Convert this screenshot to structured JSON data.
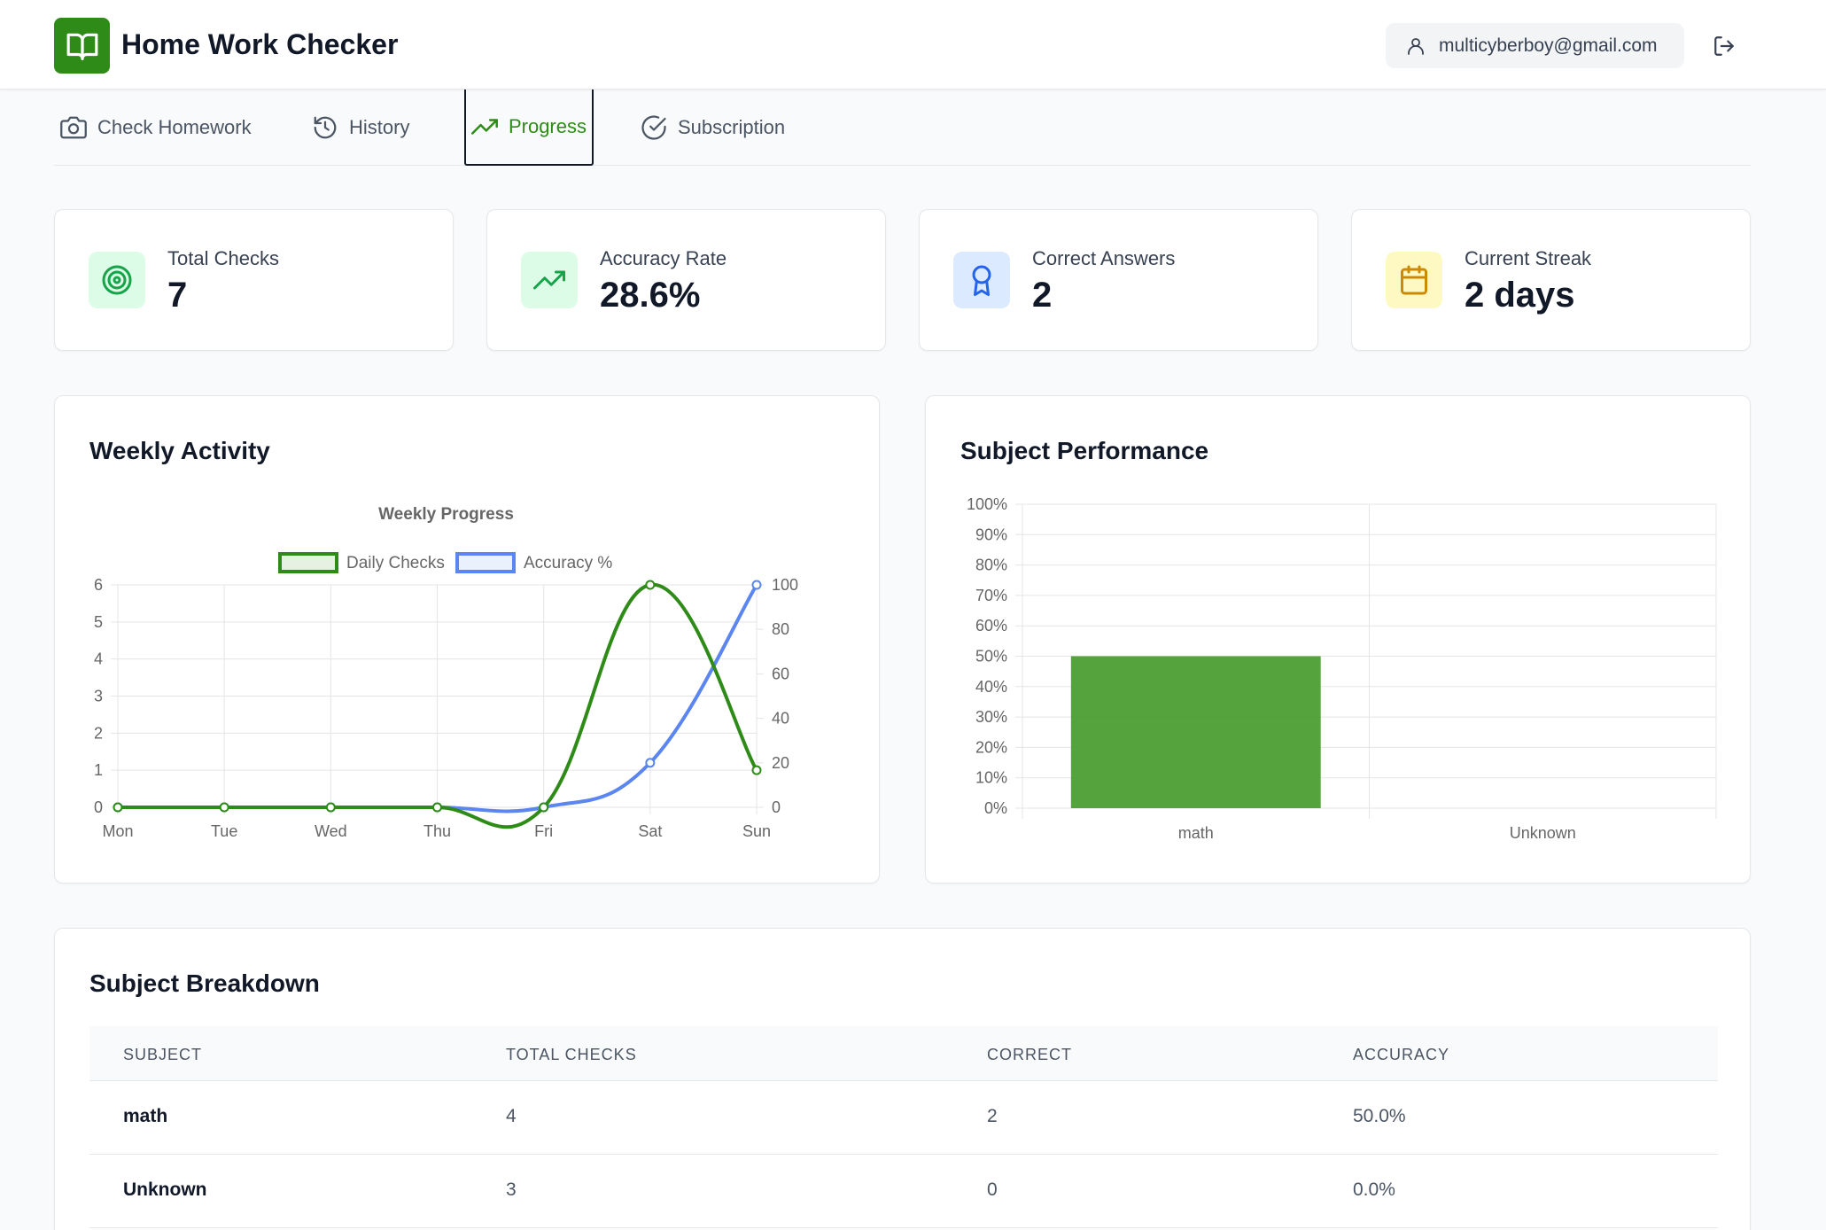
{
  "app": {
    "title": "Home Work Checker",
    "email": "multicyberboy@gmail.com"
  },
  "tabs": [
    {
      "label": "Check Homework",
      "icon": "camera-icon"
    },
    {
      "label": "History",
      "icon": "history-icon"
    },
    {
      "label": "Progress",
      "icon": "trending-up-icon",
      "active": true
    },
    {
      "label": "Subscription",
      "icon": "check-circle-icon"
    }
  ],
  "stats": [
    {
      "label": "Total Checks",
      "value": "7",
      "icon": "target-icon",
      "color": "#16a34a",
      "bg": "#dcfce7"
    },
    {
      "label": "Accuracy Rate",
      "value": "28.6%",
      "icon": "trending-up-icon",
      "color": "#16a34a",
      "bg": "#dcfce7"
    },
    {
      "label": "Correct Answers",
      "value": "2",
      "icon": "award-icon",
      "color": "#2563eb",
      "bg": "#dbeafe"
    },
    {
      "label": "Current Streak",
      "value": "2 days",
      "icon": "calendar-icon",
      "color": "#ca8a04",
      "bg": "#fef9c3"
    }
  ],
  "weekly": {
    "panel_title": "Weekly Activity"
  },
  "subject_perf": {
    "panel_title": "Subject Performance"
  },
  "chart_data": [
    {
      "type": "line",
      "title": "Weekly Progress",
      "categories": [
        "Mon",
        "Tue",
        "Wed",
        "Thu",
        "Fri",
        "Sat",
        "Sun"
      ],
      "series": [
        {
          "name": "Daily Checks",
          "values": [
            0,
            0,
            0,
            0,
            0,
            6,
            1
          ],
          "axis": "left",
          "color": "#2e8b17"
        },
        {
          "name": "Accuracy %",
          "values": [
            0,
            0,
            0,
            0,
            0,
            20,
            100
          ],
          "axis": "right",
          "color": "#5b85f0"
        }
      ],
      "ylim_left": [
        0,
        6
      ],
      "yticks_left": [
        "0",
        "1",
        "2",
        "3",
        "4",
        "5",
        "6"
      ],
      "ylim_right": [
        0,
        100
      ],
      "yticks_right": [
        "0",
        "20",
        "40",
        "60",
        "80",
        "100"
      ],
      "legend": "top",
      "grid": true
    },
    {
      "type": "bar",
      "categories": [
        "math",
        "Unknown"
      ],
      "values": [
        50,
        0
      ],
      "ylim": [
        0,
        100
      ],
      "yticks": [
        "0%",
        "10%",
        "20%",
        "30%",
        "40%",
        "50%",
        "60%",
        "70%",
        "80%",
        "90%",
        "100%"
      ],
      "color": "#4c9e32",
      "grid": true
    }
  ],
  "breakdown": {
    "title": "Subject Breakdown",
    "headers": [
      "SUBJECT",
      "TOTAL CHECKS",
      "CORRECT",
      "ACCURACY"
    ],
    "rows": [
      [
        "math",
        "4",
        "2",
        "50.0%"
      ],
      [
        "Unknown",
        "3",
        "0",
        "0.0%"
      ]
    ]
  }
}
